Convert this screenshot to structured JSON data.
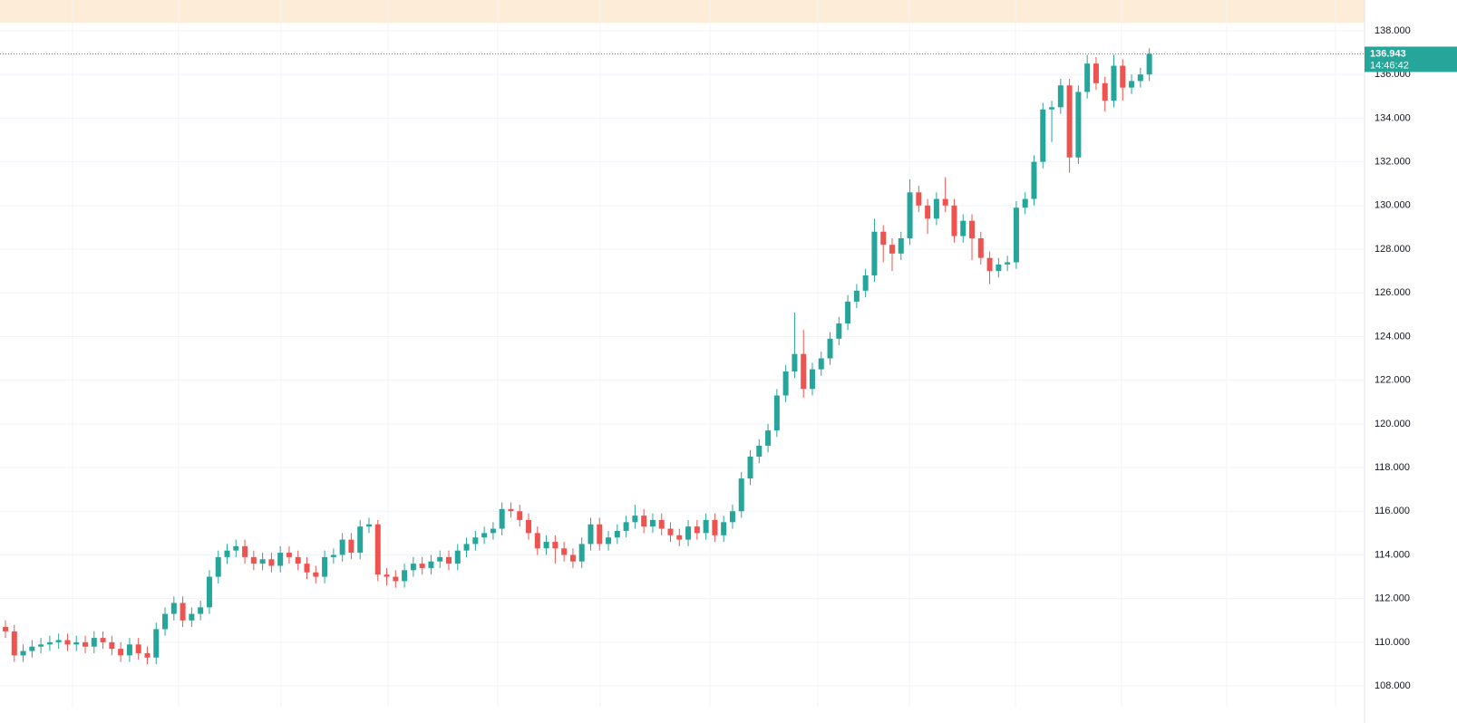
{
  "chart_data": {
    "type": "candlestick",
    "up_color": "#26a69a",
    "down_color": "#ef5350",
    "open": [
      110.7,
      110.5,
      109.4,
      109.6,
      109.8,
      109.9,
      110.0,
      110.1,
      109.9,
      110.0,
      109.8,
      110.2,
      110.0,
      109.7,
      109.4,
      109.9,
      109.5,
      109.3,
      110.6,
      111.3,
      111.8,
      111.0,
      111.3,
      111.6,
      113.0,
      113.9,
      114.2,
      114.4,
      113.9,
      113.6,
      113.8,
      113.5,
      114.1,
      113.9,
      113.6,
      113.2,
      113.0,
      113.9,
      114.0,
      114.7,
      114.1,
      115.3,
      115.4,
      113.1,
      113.0,
      112.8,
      113.3,
      113.6,
      113.4,
      113.7,
      113.9,
      113.6,
      114.2,
      114.5,
      114.8,
      115.0,
      115.2,
      116.1,
      116.0,
      115.6,
      115.0,
      114.3,
      114.6,
      114.3,
      114.0,
      113.7,
      114.5,
      115.4,
      114.5,
      114.8,
      115.1,
      115.5,
      115.8,
      115.3,
      115.6,
      115.2,
      114.9,
      114.7,
      115.3,
      115.0,
      115.6,
      114.9,
      115.5,
      116.0,
      117.5,
      118.5,
      119.0,
      119.7,
      121.3,
      122.4,
      123.2,
      121.6,
      122.5,
      123.0,
      123.9,
      124.6,
      125.6,
      126.1,
      126.8,
      128.8,
      128.2,
      127.8,
      128.5,
      130.6,
      130.0,
      129.4,
      130.3,
      130.0,
      128.6,
      129.3,
      128.5,
      127.6,
      127.0,
      127.3,
      127.4,
      129.9,
      130.3,
      132.0,
      134.4,
      134.5,
      135.5,
      132.2,
      135.2,
      136.5,
      135.6,
      134.8,
      136.4,
      135.4,
      135.7,
      136.0
    ],
    "high": [
      111.0,
      110.8,
      109.9,
      110.1,
      110.2,
      110.3,
      110.4,
      110.4,
      110.3,
      110.3,
      110.5,
      110.5,
      110.3,
      110.0,
      110.2,
      110.2,
      109.8,
      110.9,
      111.6,
      112.1,
      112.1,
      111.6,
      111.9,
      113.3,
      114.2,
      114.5,
      114.7,
      114.7,
      114.2,
      114.1,
      114.1,
      114.4,
      114.4,
      114.2,
      113.9,
      113.5,
      114.2,
      114.3,
      115.0,
      115.0,
      115.6,
      115.7,
      115.6,
      113.4,
      113.3,
      113.6,
      113.9,
      113.9,
      114.0,
      114.2,
      114.2,
      114.5,
      114.8,
      115.1,
      115.3,
      115.5,
      116.4,
      116.4,
      116.3,
      115.9,
      115.3,
      114.9,
      114.9,
      114.6,
      114.3,
      114.8,
      115.7,
      115.7,
      115.1,
      115.4,
      115.8,
      116.3,
      116.1,
      115.9,
      115.9,
      115.5,
      115.2,
      115.6,
      115.6,
      115.9,
      115.9,
      115.8,
      116.3,
      117.8,
      118.8,
      119.3,
      120.0,
      121.6,
      122.7,
      125.1,
      124.3,
      122.8,
      123.3,
      124.2,
      124.9,
      125.9,
      126.4,
      127.1,
      129.4,
      129.1,
      128.5,
      128.8,
      131.2,
      130.9,
      130.3,
      130.6,
      131.3,
      130.3,
      129.6,
      129.6,
      128.8,
      127.9,
      127.6,
      127.7,
      130.2,
      130.6,
      132.3,
      134.7,
      134.8,
      135.8,
      135.8,
      135.5,
      136.9,
      136.8,
      135.9,
      136.9,
      136.7,
      136.0,
      136.3,
      137.2
    ],
    "low": [
      110.2,
      109.1,
      109.1,
      109.3,
      109.5,
      109.6,
      109.7,
      109.6,
      109.6,
      109.5,
      109.5,
      109.7,
      109.4,
      109.1,
      109.1,
      109.2,
      109.0,
      109.0,
      110.3,
      111.0,
      110.7,
      110.7,
      111.0,
      111.3,
      112.7,
      113.6,
      113.9,
      113.6,
      113.3,
      113.3,
      113.2,
      113.2,
      113.6,
      113.3,
      112.9,
      112.7,
      112.7,
      113.6,
      113.7,
      113.8,
      113.8,
      115.0,
      112.8,
      112.6,
      112.5,
      112.5,
      113.0,
      113.1,
      113.1,
      113.4,
      113.3,
      113.3,
      113.9,
      114.2,
      114.5,
      114.7,
      114.9,
      115.7,
      115.3,
      114.7,
      114.0,
      114.0,
      113.6,
      113.7,
      113.4,
      113.4,
      114.2,
      114.2,
      114.2,
      114.5,
      114.8,
      115.2,
      115.0,
      115.0,
      114.9,
      114.6,
      114.4,
      114.4,
      114.7,
      114.7,
      114.6,
      114.6,
      115.2,
      115.7,
      117.2,
      118.2,
      118.7,
      119.4,
      121.0,
      122.1,
      121.2,
      121.3,
      122.2,
      122.7,
      123.6,
      124.3,
      125.3,
      125.8,
      126.5,
      127.4,
      127.0,
      127.5,
      128.2,
      129.7,
      128.7,
      129.1,
      129.7,
      128.3,
      128.3,
      127.5,
      127.3,
      126.4,
      126.7,
      127.0,
      127.1,
      129.6,
      130.0,
      131.7,
      132.9,
      134.2,
      131.5,
      131.9,
      134.9,
      135.3,
      134.3,
      134.5,
      134.8,
      135.1,
      135.4,
      135.7
    ],
    "close": [
      110.5,
      109.4,
      109.6,
      109.8,
      109.9,
      110.0,
      110.1,
      109.9,
      110.0,
      109.8,
      110.2,
      110.0,
      109.7,
      109.4,
      109.9,
      109.5,
      109.3,
      110.6,
      111.3,
      111.8,
      111.0,
      111.3,
      111.6,
      113.0,
      113.9,
      114.2,
      114.4,
      113.9,
      113.6,
      113.8,
      113.5,
      114.1,
      113.9,
      113.6,
      113.2,
      113.0,
      113.9,
      114.0,
      114.7,
      114.1,
      115.3,
      115.4,
      113.1,
      113.0,
      112.8,
      113.3,
      113.6,
      113.4,
      113.7,
      113.9,
      113.6,
      114.2,
      114.5,
      114.8,
      115.0,
      115.2,
      116.1,
      116.0,
      115.6,
      115.0,
      114.3,
      114.6,
      114.3,
      114.0,
      113.7,
      114.5,
      115.4,
      114.5,
      114.8,
      115.1,
      115.5,
      115.8,
      115.3,
      115.6,
      115.2,
      114.9,
      114.7,
      115.3,
      115.0,
      115.6,
      114.9,
      115.5,
      116.0,
      117.5,
      118.5,
      119.0,
      119.7,
      121.3,
      122.4,
      123.2,
      121.6,
      122.5,
      123.0,
      123.9,
      124.6,
      125.6,
      126.1,
      126.8,
      128.8,
      128.2,
      127.8,
      128.5,
      130.6,
      130.0,
      129.4,
      130.3,
      130.0,
      128.6,
      129.3,
      128.5,
      127.6,
      127.0,
      127.3,
      127.4,
      129.9,
      130.3,
      132.0,
      134.4,
      134.5,
      135.5,
      132.2,
      135.2,
      136.5,
      135.6,
      134.8,
      136.4,
      135.4,
      135.7,
      136.0,
      136.943
    ],
    "ylim": [
      107.05,
      139.41
    ],
    "yticks": [
      {
        "value": 108,
        "label": "108.000"
      },
      {
        "value": 110,
        "label": "110.000"
      },
      {
        "value": 112,
        "label": "112.000"
      },
      {
        "value": 114,
        "label": "114.000"
      },
      {
        "value": 116,
        "label": "116.000"
      },
      {
        "value": 118,
        "label": "118.000"
      },
      {
        "value": 120,
        "label": "120.000"
      },
      {
        "value": 122,
        "label": "122.000"
      },
      {
        "value": 124,
        "label": "124.000"
      },
      {
        "value": 126,
        "label": "126.000"
      },
      {
        "value": 128,
        "label": "128.000"
      },
      {
        "value": 130,
        "label": "130.000"
      },
      {
        "value": 132,
        "label": "132.000"
      },
      {
        "value": 134,
        "label": "134.000"
      },
      {
        "value": 136,
        "label": "136.000"
      },
      {
        "value": 138,
        "label": "138.000"
      }
    ],
    "grid": true,
    "last_price": 136.943,
    "countdown": "14:46:42"
  }
}
